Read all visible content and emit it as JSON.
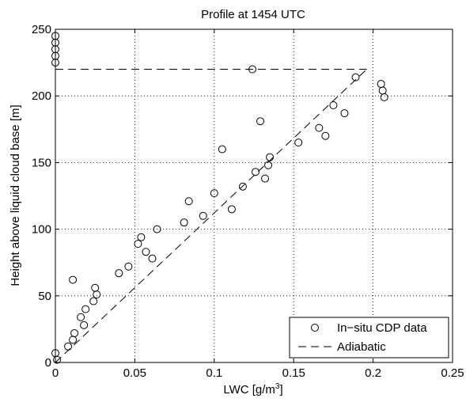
{
  "chart_data": {
    "type": "scatter",
    "title": "Profile at 1454 UTC",
    "xlabel_main": "LWC [g/m",
    "xlabel_sup": "3",
    "xlabel_end": "]",
    "ylabel": "Height above liquid cloud base [m]",
    "xlim": [
      0,
      0.25
    ],
    "ylim": [
      0,
      250
    ],
    "xticks": [
      0,
      0.05,
      0.1,
      0.15,
      0.2,
      0.25
    ],
    "xtick_labels": [
      "0",
      "0.05",
      "0.1",
      "0.15",
      "0.2",
      "0.25"
    ],
    "yticks": [
      0,
      50,
      100,
      150,
      200,
      250
    ],
    "ytick_labels": [
      "0",
      "50",
      "100",
      "150",
      "200",
      "250"
    ],
    "grid": true,
    "legend_position": "bottom-right",
    "series": [
      {
        "name": "In−situ CDP data",
        "marker": "open-circle",
        "color": "#000000",
        "points": [
          [
            0.0,
            245
          ],
          [
            0.0,
            240
          ],
          [
            0.0,
            235
          ],
          [
            0.0,
            230
          ],
          [
            0.0,
            225
          ],
          [
            0.0,
            7
          ],
          [
            0.001,
            2
          ],
          [
            0.008,
            12
          ],
          [
            0.011,
            17
          ],
          [
            0.012,
            22
          ],
          [
            0.011,
            62
          ],
          [
            0.016,
            34
          ],
          [
            0.018,
            28
          ],
          [
            0.019,
            40
          ],
          [
            0.024,
            46
          ],
          [
            0.025,
            56
          ],
          [
            0.026,
            51
          ],
          [
            0.04,
            67
          ],
          [
            0.046,
            72
          ],
          [
            0.052,
            89
          ],
          [
            0.054,
            94
          ],
          [
            0.057,
            83
          ],
          [
            0.061,
            78
          ],
          [
            0.064,
            100
          ],
          [
            0.081,
            105
          ],
          [
            0.084,
            121
          ],
          [
            0.093,
            110
          ],
          [
            0.1,
            127
          ],
          [
            0.105,
            160
          ],
          [
            0.111,
            115
          ],
          [
            0.118,
            132
          ],
          [
            0.124,
            220
          ],
          [
            0.126,
            143
          ],
          [
            0.129,
            181
          ],
          [
            0.132,
            138
          ],
          [
            0.134,
            148
          ],
          [
            0.135,
            154
          ],
          [
            0.153,
            165
          ],
          [
            0.166,
            176
          ],
          [
            0.17,
            170
          ],
          [
            0.175,
            193
          ],
          [
            0.182,
            187
          ],
          [
            0.189,
            214
          ],
          [
            0.205,
            209
          ],
          [
            0.206,
            204
          ],
          [
            0.207,
            199
          ]
        ]
      },
      {
        "name": "Adiabatic",
        "style": "dashed",
        "color": "#000000",
        "line": [
          [
            0.0,
            0
          ],
          [
            0.196,
            220
          ]
        ],
        "cap": [
          [
            0.0,
            220
          ],
          [
            0.196,
            220
          ]
        ]
      }
    ]
  }
}
